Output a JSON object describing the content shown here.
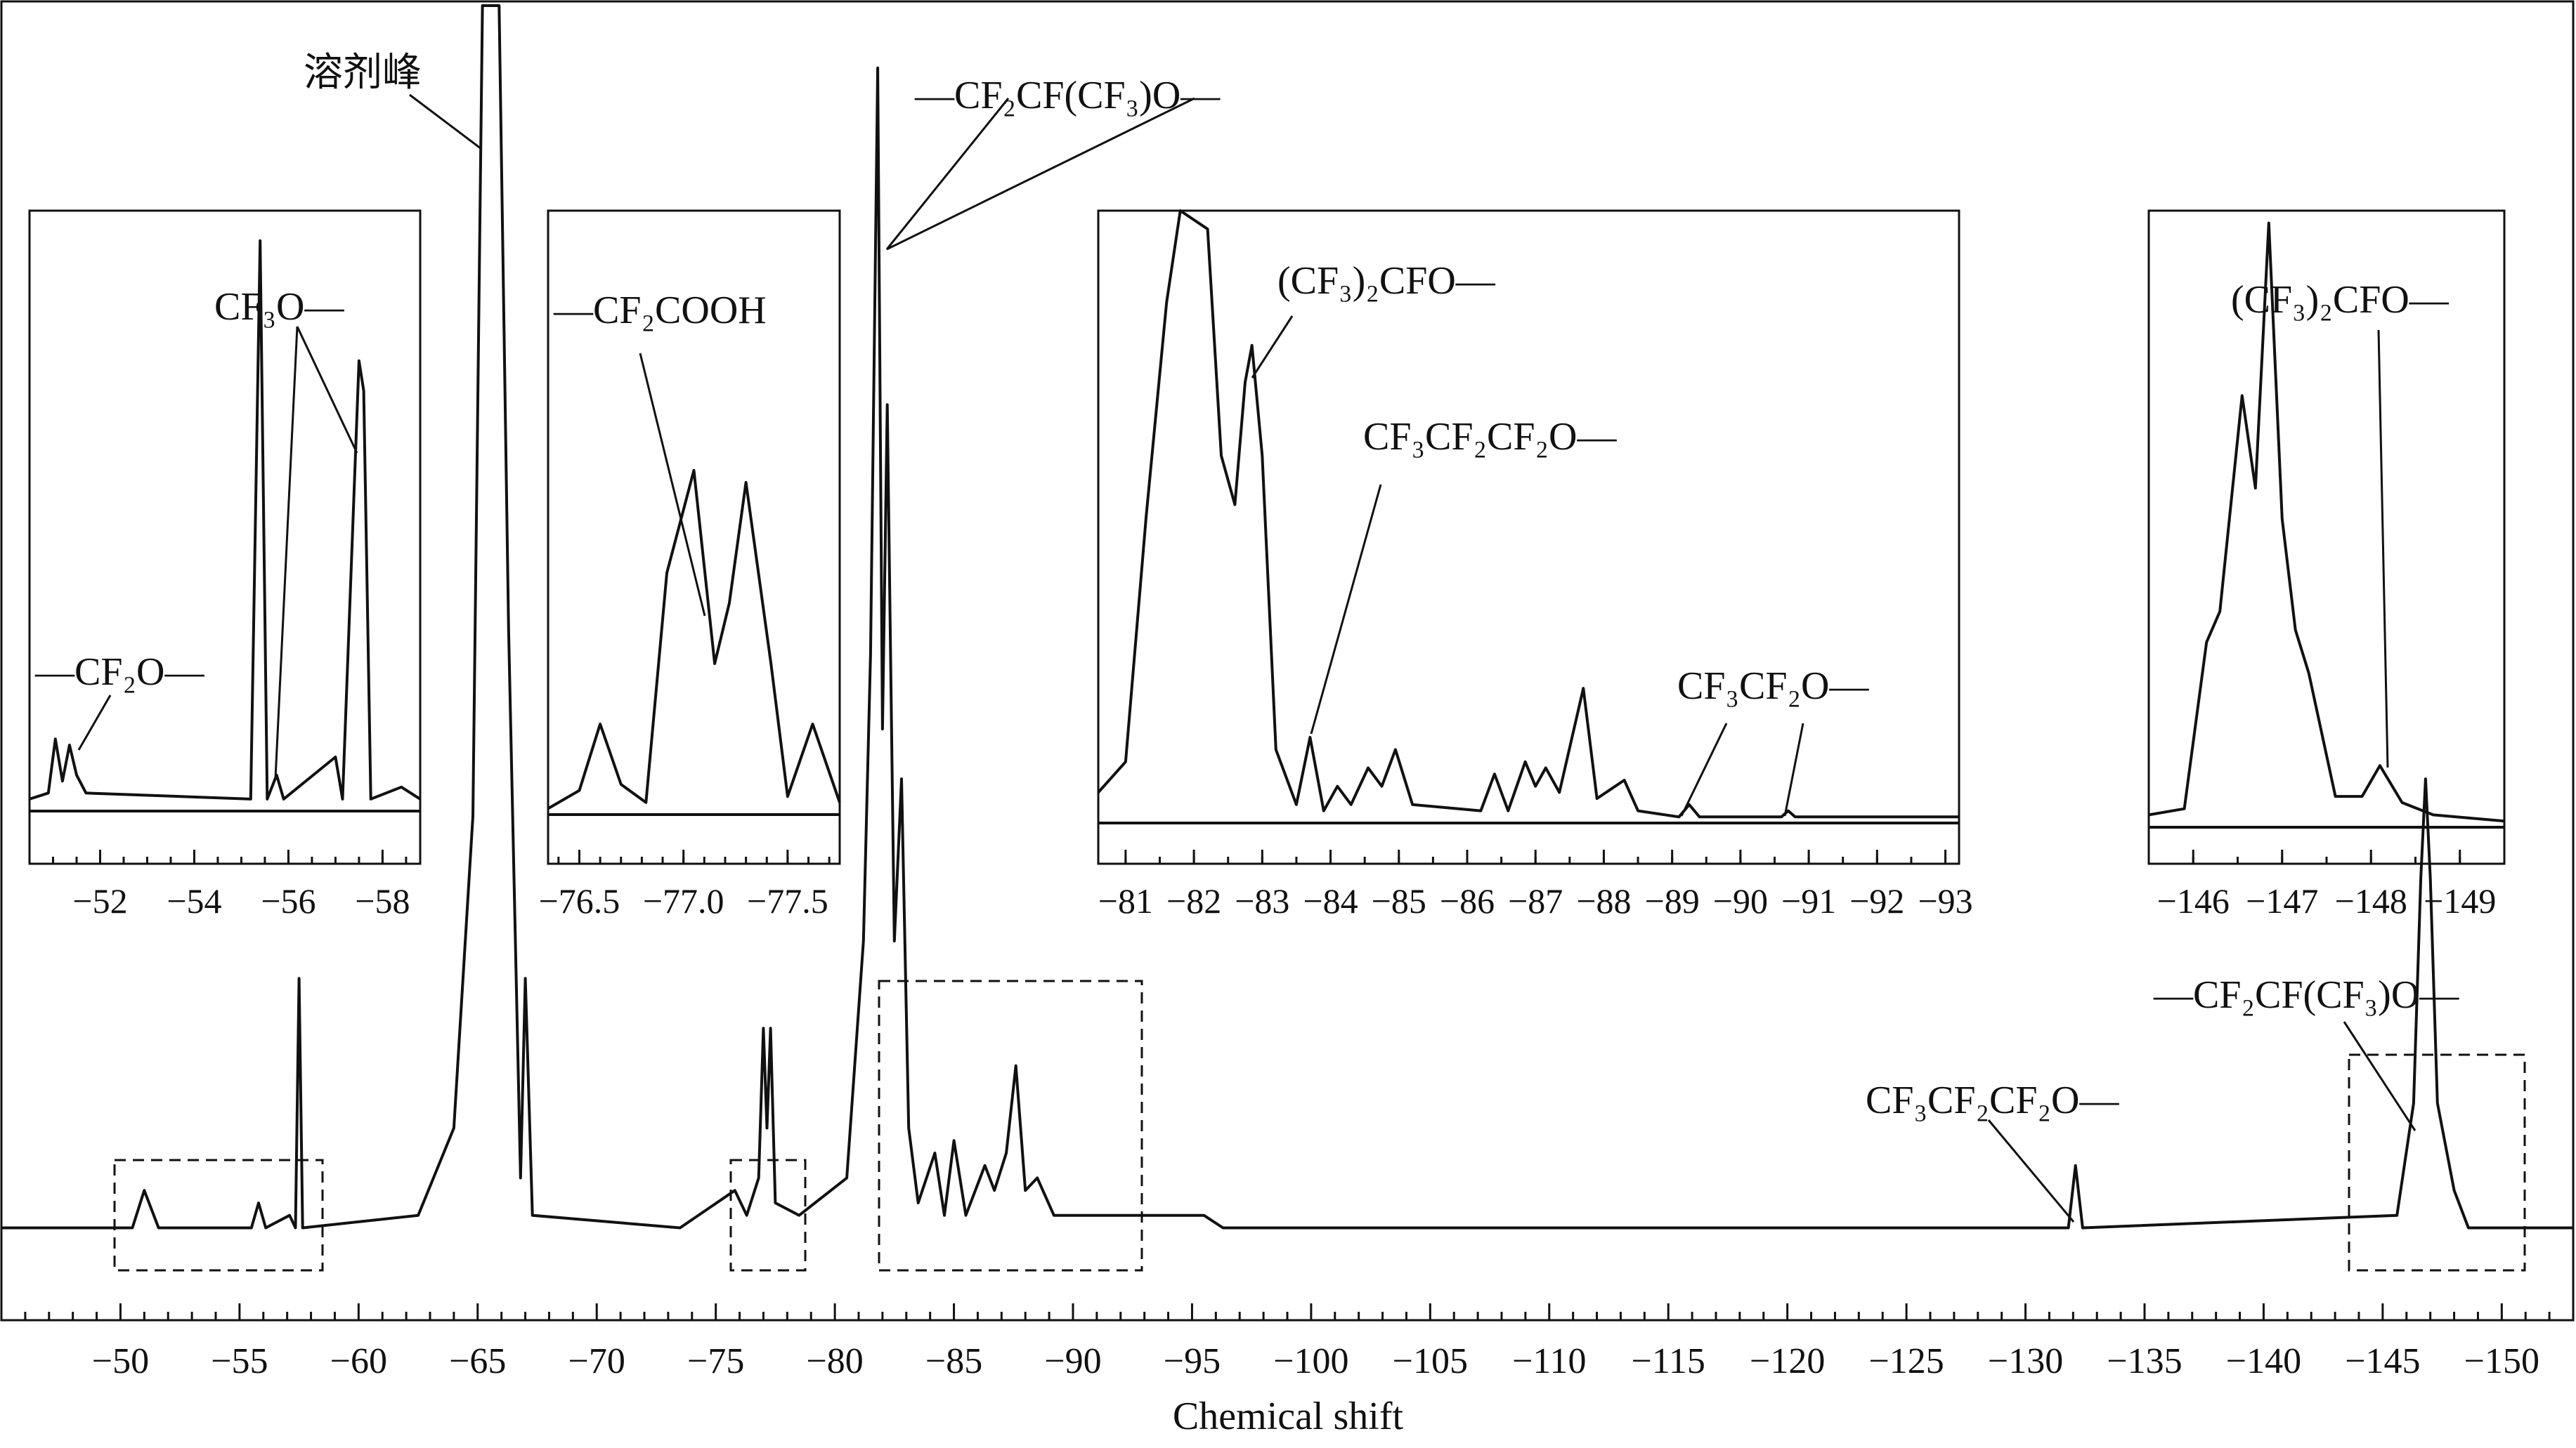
{
  "chart_data": {
    "type": "line",
    "xlabel": "Chemical shift",
    "xlim": [
      -45,
      -153
    ],
    "x_ticks": [
      -50,
      -55,
      -60,
      -65,
      -70,
      -75,
      -80,
      -85,
      -90,
      -95,
      -100,
      -105,
      -110,
      -115,
      -120,
      -125,
      -130,
      -135,
      -140,
      -145,
      -150
    ],
    "x_tick_labels": [
      "−50",
      "−55",
      "−60",
      "−65",
      "−70",
      "−75",
      "−80",
      "−85",
      "−90",
      "−95",
      "−100",
      "−105",
      "−110",
      "−115",
      "−120",
      "−125",
      "−130",
      "−135",
      "−140",
      "−145",
      "−150"
    ],
    "series": [
      {
        "points": [
          [
            -45,
            0.02
          ],
          [
            -50.5,
            0.02
          ],
          [
            -51.0,
            0.05
          ],
          [
            -51.6,
            0.02
          ],
          [
            -55.5,
            0.02
          ],
          [
            -55.8,
            0.04
          ],
          [
            -56.1,
            0.02
          ],
          [
            -57.1,
            0.03
          ],
          [
            -57.35,
            0.02
          ],
          [
            -57.5,
            0.22
          ],
          [
            -57.65,
            0.02
          ],
          [
            -62.5,
            0.03
          ],
          [
            -64.0,
            0.1
          ],
          [
            -64.8,
            0.35
          ],
          [
            -65.2,
            1.0
          ],
          [
            -65.5,
            1.0
          ],
          [
            -65.9,
            1.0
          ],
          [
            -66.3,
            0.5
          ],
          [
            -66.8,
            0.06
          ],
          [
            -67.0,
            0.22
          ],
          [
            -67.3,
            0.03
          ],
          [
            -73.5,
            0.02
          ],
          [
            -75.8,
            0.05
          ],
          [
            -76.3,
            0.03
          ],
          [
            -76.8,
            0.06
          ],
          [
            -77.0,
            0.18
          ],
          [
            -77.15,
            0.1
          ],
          [
            -77.3,
            0.18
          ],
          [
            -77.5,
            0.04
          ],
          [
            -78.5,
            0.03
          ],
          [
            -80.5,
            0.06
          ],
          [
            -81.2,
            0.25
          ],
          [
            -81.5,
            0.48
          ],
          [
            -81.8,
            0.95
          ],
          [
            -82.0,
            0.42
          ],
          [
            -82.2,
            0.68
          ],
          [
            -82.5,
            0.25
          ],
          [
            -82.8,
            0.38
          ],
          [
            -83.1,
            0.1
          ],
          [
            -83.5,
            0.04
          ],
          [
            -84.2,
            0.08
          ],
          [
            -84.6,
            0.03
          ],
          [
            -85.0,
            0.09
          ],
          [
            -85.5,
            0.03
          ],
          [
            -86.3,
            0.07
          ],
          [
            -86.7,
            0.05
          ],
          [
            -87.2,
            0.08
          ],
          [
            -87.6,
            0.15
          ],
          [
            -88.0,
            0.05
          ],
          [
            -88.5,
            0.06
          ],
          [
            -89.2,
            0.03
          ],
          [
            -95.5,
            0.03
          ],
          [
            -96.3,
            0.02
          ],
          [
            -115.0,
            0.02
          ],
          [
            -131.8,
            0.02
          ],
          [
            -132.1,
            0.07
          ],
          [
            -132.4,
            0.02
          ],
          [
            -145.6,
            0.03
          ],
          [
            -146.3,
            0.12
          ],
          [
            -146.6,
            0.3
          ],
          [
            -146.8,
            0.38
          ],
          [
            -147.0,
            0.3
          ],
          [
            -147.3,
            0.12
          ],
          [
            -148.0,
            0.05
          ],
          [
            -148.6,
            0.02
          ],
          [
            -153,
            0.02
          ]
        ]
      }
    ],
    "insets": [
      {
        "range": [
          -50.5,
          -58.8
        ],
        "ticks": [
          -52,
          -54,
          -56,
          -58
        ],
        "tick_labels": [
          "−52",
          "−54",
          "−56",
          "−58"
        ],
        "points": [
          [
            -50.5,
            0.02
          ],
          [
            -50.9,
            0.03
          ],
          [
            -51.05,
            0.12
          ],
          [
            -51.2,
            0.05
          ],
          [
            -51.35,
            0.11
          ],
          [
            -51.5,
            0.06
          ],
          [
            -51.7,
            0.03
          ],
          [
            -55.2,
            0.02
          ],
          [
            -55.4,
            0.95
          ],
          [
            -55.55,
            0.02
          ],
          [
            -55.75,
            0.06
          ],
          [
            -55.9,
            0.02
          ],
          [
            -57.0,
            0.09
          ],
          [
            -57.15,
            0.02
          ],
          [
            -57.5,
            0.75
          ],
          [
            -57.6,
            0.7
          ],
          [
            -57.75,
            0.02
          ],
          [
            -58.4,
            0.04
          ],
          [
            -58.8,
            0.02
          ]
        ],
        "annotations": [
          "—CF₂O—",
          "CF₃O—"
        ]
      },
      {
        "range": [
          -76.35,
          -77.75
        ],
        "ticks": [
          -76.5,
          -77.0,
          -77.5
        ],
        "tick_labels": [
          "−76.5",
          "−77.0",
          "−77.5"
        ],
        "points": [
          [
            -76.35,
            0.01
          ],
          [
            -76.5,
            0.04
          ],
          [
            -76.6,
            0.15
          ],
          [
            -76.7,
            0.05
          ],
          [
            -76.82,
            0.02
          ],
          [
            -76.92,
            0.4
          ],
          [
            -77.05,
            0.57
          ],
          [
            -77.15,
            0.25
          ],
          [
            -77.22,
            0.35
          ],
          [
            -77.3,
            0.55
          ],
          [
            -77.42,
            0.25
          ],
          [
            -77.5,
            0.03
          ],
          [
            -77.62,
            0.15
          ],
          [
            -77.75,
            0.02
          ]
        ],
        "annotations": [
          "—CF₂COOH"
        ]
      },
      {
        "range": [
          -80.6,
          -93.2
        ],
        "ticks": [
          -81,
          -82,
          -83,
          -84,
          -85,
          -86,
          -87,
          -88,
          -89,
          -90,
          -91,
          -92,
          -93
        ],
        "tick_labels": [
          "−81",
          "−82",
          "−83",
          "−84",
          "−85",
          "−86",
          "−87",
          "−88",
          "−89",
          "−90",
          "−91",
          "−92",
          "−93"
        ],
        "points": [
          [
            -80.6,
            0.05
          ],
          [
            -81.0,
            0.1
          ],
          [
            -81.3,
            0.5
          ],
          [
            -81.6,
            0.85
          ],
          [
            -81.8,
            1.0
          ],
          [
            -82.2,
            0.97
          ],
          [
            -82.4,
            0.6
          ],
          [
            -82.6,
            0.52
          ],
          [
            -82.75,
            0.72
          ],
          [
            -82.85,
            0.78
          ],
          [
            -83.0,
            0.6
          ],
          [
            -83.2,
            0.12
          ],
          [
            -83.5,
            0.03
          ],
          [
            -83.7,
            0.14
          ],
          [
            -83.9,
            0.02
          ],
          [
            -84.1,
            0.06
          ],
          [
            -84.3,
            0.03
          ],
          [
            -84.55,
            0.09
          ],
          [
            -84.75,
            0.06
          ],
          [
            -84.95,
            0.12
          ],
          [
            -85.2,
            0.03
          ],
          [
            -86.2,
            0.02
          ],
          [
            -86.4,
            0.08
          ],
          [
            -86.6,
            0.02
          ],
          [
            -86.85,
            0.1
          ],
          [
            -87.0,
            0.06
          ],
          [
            -87.15,
            0.09
          ],
          [
            -87.35,
            0.05
          ],
          [
            -87.7,
            0.22
          ],
          [
            -87.9,
            0.04
          ],
          [
            -88.3,
            0.07
          ],
          [
            -88.5,
            0.02
          ],
          [
            -89.1,
            0.01
          ],
          [
            -89.25,
            0.03
          ],
          [
            -89.4,
            0.01
          ],
          [
            -90.6,
            0.01
          ],
          [
            -90.7,
            0.02
          ],
          [
            -90.8,
            0.01
          ],
          [
            -93.2,
            0.01
          ]
        ],
        "annotations": [
          "(CF₃)₂CFO—",
          "CF₃CF₂CF₂O—",
          "CF₃CF₂O—"
        ]
      },
      {
        "range": [
          -145.5,
          -149.5
        ],
        "ticks": [
          -146,
          -147,
          -148,
          -149
        ],
        "tick_labels": [
          "−146",
          "−147",
          "−148",
          "−149"
        ],
        "points": [
          [
            -145.5,
            0.02
          ],
          [
            -145.9,
            0.03
          ],
          [
            -146.15,
            0.3
          ],
          [
            -146.3,
            0.35
          ],
          [
            -146.55,
            0.7
          ],
          [
            -146.7,
            0.55
          ],
          [
            -146.85,
            0.98
          ],
          [
            -147.0,
            0.5
          ],
          [
            -147.15,
            0.32
          ],
          [
            -147.3,
            0.25
          ],
          [
            -147.6,
            0.05
          ],
          [
            -147.9,
            0.05
          ],
          [
            -148.1,
            0.1
          ],
          [
            -148.35,
            0.04
          ],
          [
            -148.7,
            0.02
          ],
          [
            -149.5,
            0.01
          ]
        ],
        "annotations": [
          "(CF₃)₂CFO—"
        ]
      }
    ],
    "annotations": [
      "溶剂峰",
      "—CF₂CF(CF₃)O—",
      "—CF₂CF(CF₃)O—",
      "CF₃CF₂CF₂O—"
    ]
  }
}
